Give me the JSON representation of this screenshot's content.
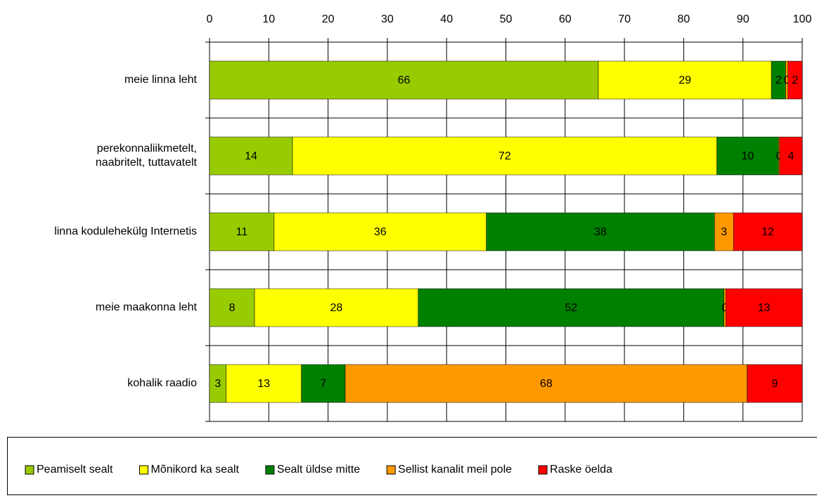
{
  "chart_data": {
    "type": "stacked-bar-horizontal",
    "categories": [
      "meie linna leht",
      "perekonnaliikmetelt,\nnaabritelt, tuttavatelt",
      "linna kodulehekülg Internetis",
      "meie maakonna leht",
      "kohalik raadio"
    ],
    "series": [
      {
        "name": "Peamiselt sealt",
        "color": "#99cc00",
        "values": [
          65.6,
          14.0,
          10.9,
          7.6,
          2.8
        ],
        "value_labels": [
          "66",
          "14",
          "11",
          "8",
          "3"
        ]
      },
      {
        "name": "Mõnikord ka sealt",
        "color": "#ffff00",
        "values": [
          29.2,
          71.6,
          35.8,
          27.6,
          12.7
        ],
        "value_labels": [
          "29",
          "72",
          "36",
          "28",
          "13"
        ]
      },
      {
        "name": "Sealt üldse mitte",
        "color": "#008000",
        "values": [
          2.4,
          10.4,
          38.5,
          51.6,
          7.4
        ],
        "value_labels": [
          "2",
          "10",
          "38",
          "52",
          "7"
        ]
      },
      {
        "name": "Sellist kanalit meil pole",
        "color": "#ff9900",
        "values": [
          0.4,
          0.2,
          3.2,
          0.3,
          67.8
        ],
        "value_labels": [
          "0",
          "0",
          "3",
          "0",
          "68"
        ]
      },
      {
        "name": "Raske öelda",
        "color": "#ff0000",
        "values": [
          2.4,
          3.8,
          11.6,
          12.9,
          9.3
        ],
        "value_labels": [
          "2",
          "4",
          "12",
          "13",
          "9"
        ]
      }
    ],
    "xlim": [
      0,
      100
    ],
    "xticks": [
      0,
      10,
      20,
      30,
      40,
      50,
      60,
      70,
      80,
      90,
      100
    ],
    "grid": true,
    "legend": "bottom"
  }
}
